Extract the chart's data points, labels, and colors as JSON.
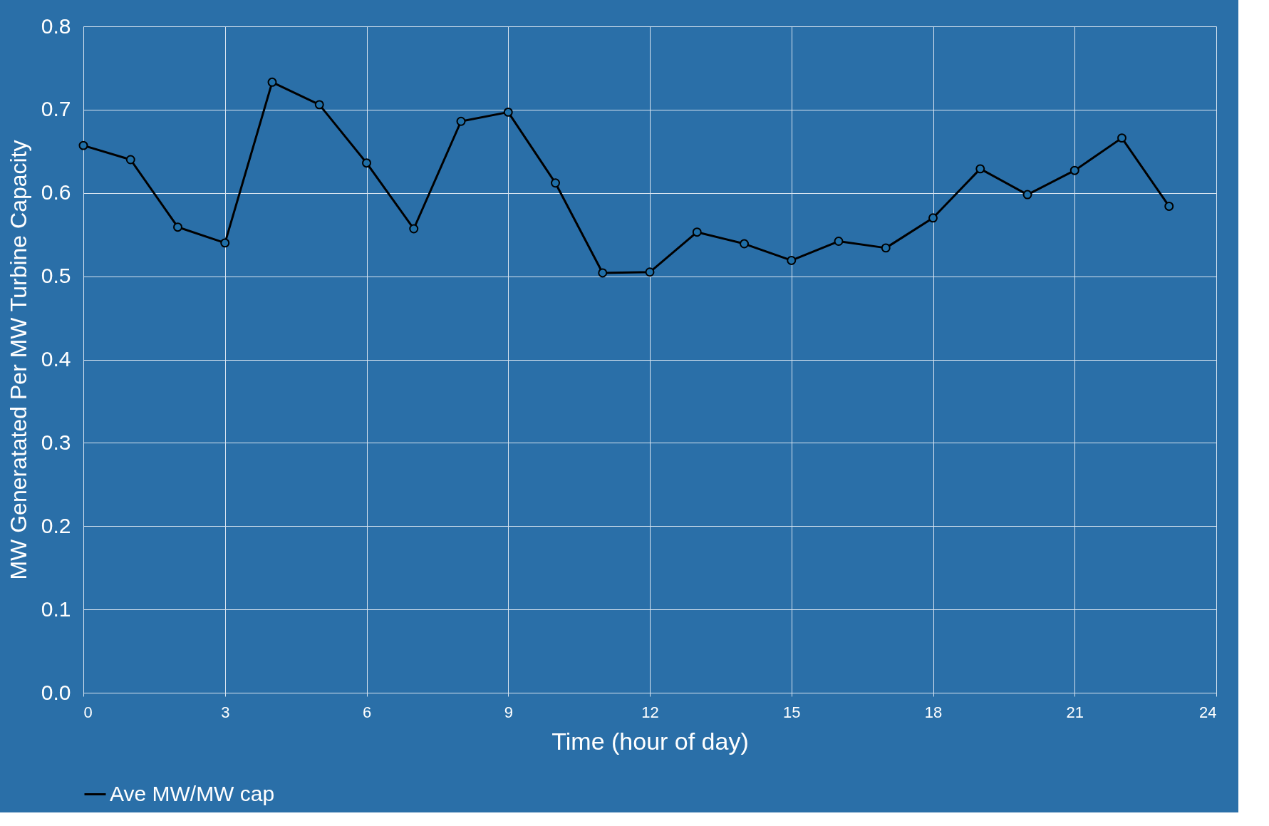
{
  "chart_data": {
    "type": "line",
    "xlabel": "Time (hour of day)",
    "ylabel": "MW Generatated Per MW Turbine Capacity",
    "x": [
      0,
      1,
      2,
      3,
      4,
      5,
      6,
      7,
      8,
      9,
      10,
      11,
      12,
      13,
      14,
      15,
      16,
      17,
      18,
      19,
      20,
      21,
      22,
      23
    ],
    "series": [
      {
        "name": "Ave MW/MW cap",
        "color": "#000000",
        "values": [
          0.657,
          0.64,
          0.559,
          0.54,
          0.733,
          0.706,
          0.636,
          0.557,
          0.686,
          0.697,
          0.612,
          0.504,
          0.505,
          0.553,
          0.539,
          0.519,
          0.542,
          0.534,
          0.57,
          0.629,
          0.598,
          0.627,
          0.666,
          0.584
        ]
      }
    ],
    "xlim": [
      0,
      24
    ],
    "xticks": [
      0,
      3,
      6,
      9,
      12,
      15,
      18,
      21,
      24
    ],
    "ylim": [
      0,
      0.8
    ],
    "yticks": [
      {
        "value": 0,
        "label": "0.0"
      },
      0.1,
      0.2,
      0.3,
      0.4,
      0.5,
      0.6,
      0.7,
      0.8
    ],
    "grid": true,
    "legend": "bottom",
    "marker": "circle",
    "line_style": "solid"
  }
}
